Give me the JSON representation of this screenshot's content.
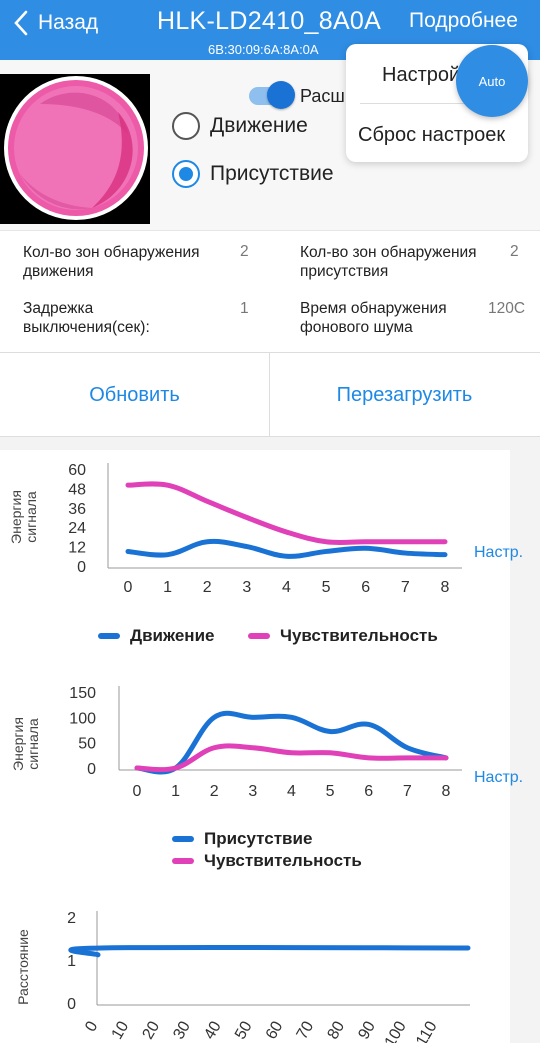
{
  "header": {
    "back_label": "Назад",
    "title": "HLK-LD2410_8A0A",
    "mac": "6B:30:09:6A:8A:0A",
    "more_label": "Подробнее"
  },
  "controls": {
    "toggle_label": "Расш",
    "toggle_on": true,
    "radio_motion": "Движение",
    "radio_presence": "Присутствие",
    "selected": "Присутствие"
  },
  "menu": {
    "items": [
      "Настрой",
      "Сброс настроек"
    ]
  },
  "fab_label": "Auto",
  "info": {
    "motion_zones_label": "Кол-во зон обнаружения движения",
    "motion_zones_value": "2",
    "presence_zones_label": "Кол-во зон обнаружения присутствия",
    "presence_zones_value": "2",
    "off_delay_label": "Задрежка выключения(сек):",
    "off_delay_value": "1",
    "noise_time_label": "Время обнаружения фонового шума",
    "noise_time_value": "120С"
  },
  "actions": {
    "refresh_label": "Обновить",
    "reboot_label": "Перезагрузить"
  },
  "colors": {
    "accent": "#2f8de4",
    "series_blue": "#1a73d4",
    "series_pink": "#e040b8"
  },
  "chart_data": [
    {
      "type": "line",
      "ylabel": "Энергия сигнала",
      "yticks": [
        0,
        12,
        24,
        36,
        48,
        60
      ],
      "ylim": [
        0,
        60
      ],
      "x": [
        0,
        1,
        2,
        3,
        4,
        5,
        6,
        7,
        8
      ],
      "series": [
        {
          "name": "Движение",
          "values": [
            9,
            7,
            15,
            12,
            6,
            9,
            11,
            8,
            7
          ]
        },
        {
          "name": "Чувствительность",
          "values": [
            50,
            50,
            40,
            30,
            21,
            15,
            15,
            15,
            15
          ]
        }
      ],
      "settings_link": "Настр.",
      "legend": "bottom"
    },
    {
      "type": "line",
      "ylabel": "Энергия сигнала",
      "yticks": [
        0,
        50,
        100,
        150
      ],
      "ylim": [
        0,
        150
      ],
      "x": [
        0,
        1,
        2,
        3,
        4,
        5,
        6,
        7,
        8
      ],
      "series": [
        {
          "name": "Присутствие",
          "values": [
            0,
            0,
            100,
            100,
            100,
            72,
            86,
            40,
            20
          ]
        },
        {
          "name": "Чувствительность",
          "values": [
            0,
            0,
            40,
            40,
            30,
            30,
            20,
            20,
            20
          ]
        }
      ],
      "settings_link": "Настр.",
      "legend": "bottom"
    },
    {
      "type": "line",
      "ylabel": "Расстояние",
      "yticks": [
        0,
        1,
        2
      ],
      "ylim": [
        0,
        2
      ],
      "xticks": [
        0,
        10,
        20,
        30,
        40,
        50,
        60,
        70,
        80,
        90,
        100,
        110
      ],
      "series": [
        {
          "values": [
            [
              0,
              1.12
            ],
            [
              1,
              1.28
            ],
            [
              120,
              1.28
            ]
          ]
        }
      ]
    }
  ]
}
